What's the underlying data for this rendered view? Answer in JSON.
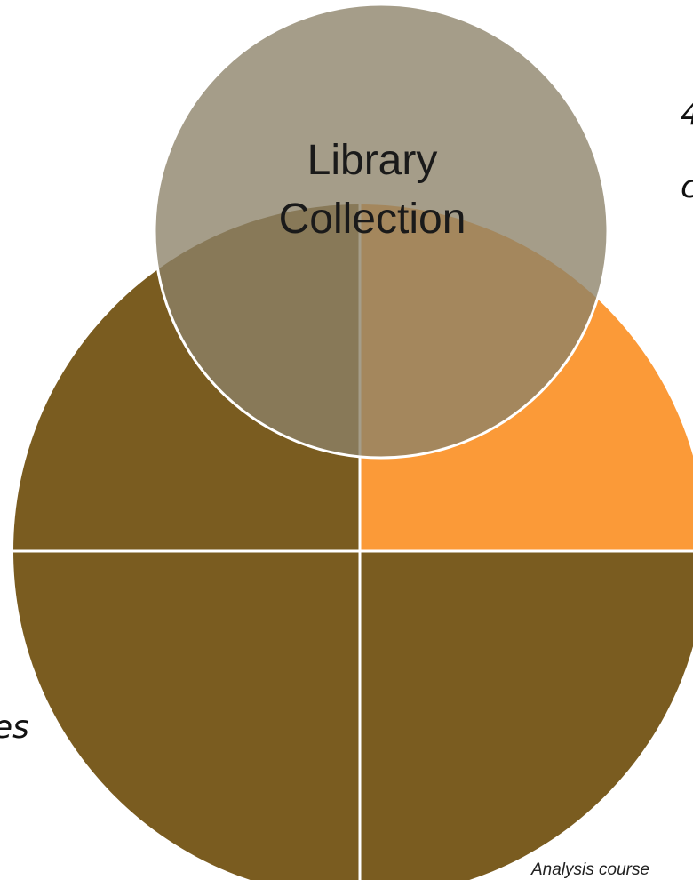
{
  "diagram": {
    "top_circle_label_line1": "Library",
    "top_circle_label_line2": "Collection",
    "right_partial_text_1": "4",
    "right_partial_text_2": "c",
    "left_partial_text": "es",
    "footer_partial_caption": "Analysis course"
  },
  "colors": {
    "quadrant_dark": "#7a5c20",
    "quadrant_orange": "#fb9a38",
    "overlay_circle": "#8c8168",
    "divider": "#ffffff"
  }
}
